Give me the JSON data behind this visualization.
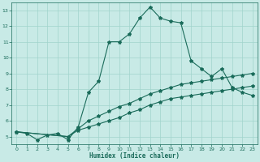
{
  "title": "",
  "xlabel": "Humidex (Indice chaleur)",
  "xlim": [
    -0.5,
    23.5
  ],
  "ylim": [
    4.5,
    13.5
  ],
  "yticks": [
    5,
    6,
    7,
    8,
    9,
    10,
    11,
    12,
    13
  ],
  "xticks": [
    0,
    1,
    2,
    3,
    4,
    5,
    6,
    7,
    8,
    9,
    10,
    11,
    12,
    13,
    14,
    15,
    16,
    17,
    18,
    19,
    20,
    21,
    22,
    23
  ],
  "bg_color": "#c8eae6",
  "line_color": "#1a6b5a",
  "grid_color": "#a0d4cc",
  "line1_x": [
    0,
    1,
    2,
    3,
    4,
    5,
    6,
    7,
    8,
    9,
    10,
    11,
    12,
    13,
    14,
    15,
    16,
    17,
    18,
    19,
    20,
    21,
    22,
    23
  ],
  "line1_y": [
    5.3,
    5.2,
    4.8,
    5.1,
    5.2,
    4.8,
    5.6,
    7.8,
    8.5,
    11.0,
    11.0,
    11.5,
    12.5,
    13.2,
    12.5,
    12.3,
    12.2,
    9.8,
    9.3,
    8.8,
    9.3,
    8.1,
    7.8,
    7.6
  ],
  "line2_x": [
    0,
    5,
    6,
    7,
    8,
    9,
    10,
    11,
    12,
    13,
    14,
    15,
    16,
    17,
    18,
    19,
    20,
    21,
    22,
    23
  ],
  "line2_y": [
    5.3,
    5.0,
    5.5,
    6.0,
    6.3,
    6.6,
    6.9,
    7.1,
    7.4,
    7.7,
    7.9,
    8.1,
    8.3,
    8.4,
    8.5,
    8.6,
    8.7,
    8.8,
    8.9,
    9.0
  ],
  "line3_x": [
    0,
    5,
    6,
    7,
    8,
    9,
    10,
    11,
    12,
    13,
    14,
    15,
    16,
    17,
    18,
    19,
    20,
    21,
    22,
    23
  ],
  "line3_y": [
    5.3,
    5.0,
    5.4,
    5.6,
    5.8,
    6.0,
    6.2,
    6.5,
    6.7,
    7.0,
    7.2,
    7.4,
    7.5,
    7.6,
    7.7,
    7.8,
    7.9,
    8.0,
    8.1,
    8.2
  ]
}
